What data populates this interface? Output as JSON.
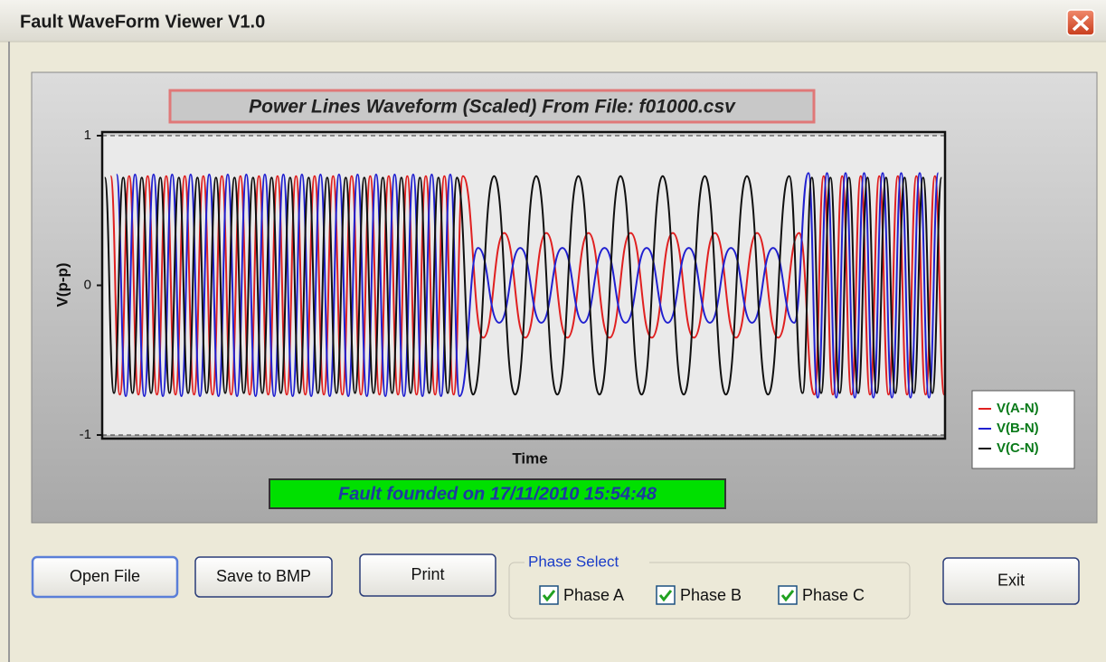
{
  "window": {
    "title": "Fault WaveForm Viewer V1.0"
  },
  "chart_data": {
    "type": "line",
    "title": "Power Lines Waveform (Scaled) From File: f01000.csv",
    "x_label": "Time",
    "y_label": "V(p-p)",
    "xlim": [
      0,
      1000
    ],
    "ylim": [
      -1,
      1
    ],
    "yticks": [
      -1,
      0,
      1
    ],
    "legend": "right",
    "series": [
      {
        "name": "V(A-N)",
        "color": "#e02020",
        "x": [
          10,
          21,
          32,
          43,
          54,
          65,
          76,
          87,
          98,
          109,
          120,
          131,
          142,
          153,
          164,
          175,
          186,
          197,
          208,
          219,
          230,
          241,
          252,
          263,
          274,
          285,
          296,
          307,
          318,
          329,
          340,
          351,
          362,
          373,
          384,
          395,
          406,
          417,
          428,
          452,
          477,
          502,
          527,
          552,
          577,
          602,
          627,
          652,
          677,
          702,
          727,
          752,
          777,
          802,
          827,
          845,
          856,
          867,
          878,
          889,
          900,
          911,
          922,
          933,
          944,
          955,
          966,
          977,
          988,
          999
        ],
        "values": [
          0.73,
          -0.73,
          0.73,
          -0.73,
          0.73,
          -0.73,
          0.73,
          -0.73,
          0.73,
          -0.73,
          0.73,
          -0.73,
          0.73,
          -0.73,
          0.73,
          -0.73,
          0.73,
          -0.73,
          0.73,
          -0.73,
          0.73,
          -0.73,
          0.73,
          -0.73,
          0.73,
          -0.73,
          0.73,
          -0.73,
          0.73,
          -0.73,
          0.73,
          -0.73,
          0.73,
          -0.73,
          0.73,
          -0.73,
          0.73,
          -0.73,
          0.73,
          -0.35,
          0.35,
          -0.35,
          0.35,
          -0.35,
          0.35,
          -0.35,
          0.35,
          -0.35,
          0.35,
          -0.35,
          0.35,
          -0.35,
          0.35,
          -0.35,
          0.35,
          -0.73,
          0.73,
          -0.73,
          0.73,
          -0.73,
          0.73,
          -0.73,
          0.73,
          -0.73,
          0.73,
          -0.73,
          0.73,
          -0.73,
          0.73,
          -0.73
        ]
      },
      {
        "name": "V(B-N)",
        "color": "#2020d0",
        "x": [
          17,
          28,
          39,
          50,
          61,
          72,
          83,
          94,
          105,
          116,
          127,
          138,
          149,
          160,
          171,
          182,
          193,
          204,
          215,
          226,
          237,
          248,
          259,
          270,
          281,
          292,
          303,
          314,
          325,
          336,
          347,
          358,
          369,
          380,
          391,
          402,
          413,
          424,
          446,
          471,
          496,
          521,
          546,
          571,
          596,
          621,
          646,
          671,
          696,
          721,
          746,
          771,
          796,
          821,
          838,
          849,
          860,
          871,
          882,
          893,
          904,
          915,
          926,
          937,
          948,
          959,
          970,
          981,
          992
        ],
        "values": [
          0.74,
          -0.74,
          0.74,
          -0.74,
          0.74,
          -0.74,
          0.74,
          -0.74,
          0.74,
          -0.74,
          0.74,
          -0.74,
          0.74,
          -0.74,
          0.74,
          -0.74,
          0.74,
          -0.74,
          0.74,
          -0.74,
          0.74,
          -0.74,
          0.74,
          -0.74,
          0.74,
          -0.74,
          0.74,
          -0.74,
          0.74,
          -0.74,
          0.74,
          -0.74,
          0.74,
          -0.74,
          0.74,
          -0.74,
          0.74,
          -0.74,
          0.25,
          -0.25,
          0.25,
          -0.25,
          0.25,
          -0.25,
          0.25,
          -0.25,
          0.25,
          -0.25,
          0.25,
          -0.25,
          0.25,
          -0.25,
          0.25,
          -0.25,
          0.75,
          -0.75,
          0.75,
          -0.75,
          0.75,
          -0.75,
          0.75,
          -0.75,
          0.75,
          -0.75,
          0.75,
          -0.75,
          0.75,
          -0.75,
          0.75
        ]
      },
      {
        "name": "V(C-N)",
        "color": "#101010",
        "x": [
          3,
          14,
          25,
          36,
          47,
          58,
          69,
          80,
          91,
          102,
          113,
          124,
          135,
          146,
          157,
          168,
          179,
          190,
          201,
          212,
          223,
          234,
          245,
          256,
          267,
          278,
          289,
          300,
          311,
          322,
          333,
          344,
          355,
          366,
          377,
          388,
          399,
          410,
          421,
          440,
          465,
          490,
          515,
          540,
          565,
          590,
          615,
          640,
          665,
          690,
          715,
          740,
          765,
          790,
          815,
          831,
          842,
          853,
          864,
          875,
          886,
          897,
          908,
          919,
          930,
          941,
          952,
          963,
          974,
          985,
          996
        ],
        "values": [
          0.72,
          -0.72,
          0.72,
          -0.72,
          0.72,
          -0.72,
          0.72,
          -0.72,
          0.72,
          -0.72,
          0.72,
          -0.72,
          0.72,
          -0.72,
          0.72,
          -0.72,
          0.72,
          -0.72,
          0.72,
          -0.72,
          0.72,
          -0.72,
          0.72,
          -0.72,
          0.72,
          -0.72,
          0.72,
          -0.72,
          0.72,
          -0.72,
          0.72,
          -0.72,
          0.72,
          -0.72,
          0.72,
          -0.72,
          0.72,
          -0.72,
          0.72,
          -0.73,
          0.73,
          -0.73,
          0.73,
          -0.73,
          0.73,
          -0.73,
          0.73,
          -0.73,
          0.73,
          -0.73,
          0.73,
          -0.73,
          0.73,
          -0.73,
          0.73,
          -0.72,
          0.72,
          -0.72,
          0.72,
          -0.72,
          0.72,
          -0.72,
          0.72,
          -0.72,
          0.72,
          -0.72,
          0.72,
          -0.72,
          0.72,
          -0.72,
          0.72
        ]
      }
    ]
  },
  "status": "Fault founded on 17/11/2010 15:54:48",
  "buttons": [
    "Open File",
    "Save to BMP",
    "Print",
    "Exit"
  ],
  "phase_select": {
    "label": "Phase Select",
    "options": [
      {
        "label": "Phase A",
        "checked": true
      },
      {
        "label": "Phase B",
        "checked": true
      },
      {
        "label": "Phase C",
        "checked": true
      }
    ]
  }
}
